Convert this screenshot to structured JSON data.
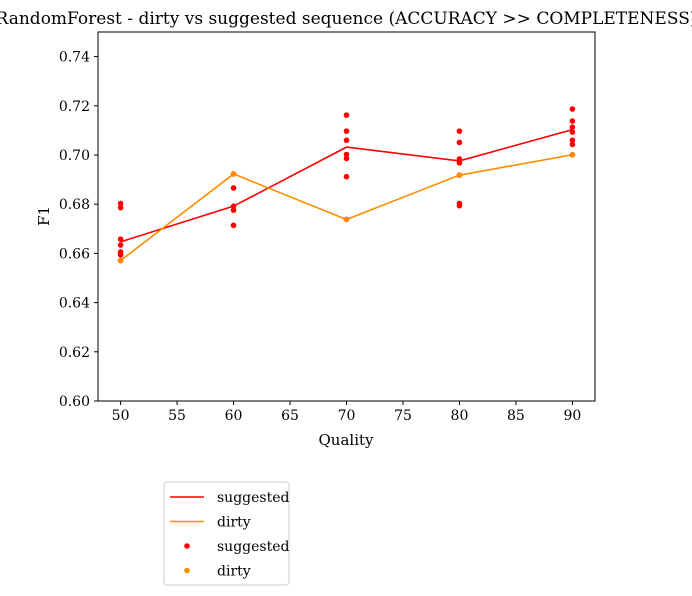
{
  "chart_data": {
    "type": "line",
    "title": "RandomForest - dirty vs suggested sequence (ACCURACY >> COMPLETENESS)",
    "xlabel": "Quality",
    "ylabel": "F1",
    "xlim": [
      48,
      92
    ],
    "ylim": [
      0.6,
      0.75
    ],
    "x_ticks": [
      50,
      55,
      60,
      65,
      70,
      75,
      80,
      85,
      90
    ],
    "y_ticks": [
      0.6,
      0.62,
      0.64,
      0.66,
      0.68,
      0.7,
      0.72,
      0.74
    ],
    "grid": false,
    "legend_placement": "below-left",
    "x": [
      50,
      60,
      70,
      80,
      90
    ],
    "series": [
      {
        "name": "suggested",
        "kind": "line",
        "color": "#ff0000",
        "values": [
          0.6647,
          0.6792,
          0.7032,
          0.6976,
          0.7103
        ]
      },
      {
        "name": "dirty",
        "kind": "line",
        "color": "#ff8c00",
        "values": [
          0.6571,
          0.6923,
          0.6738,
          0.6918,
          0.7001
        ]
      },
      {
        "name": "suggested",
        "kind": "scatter",
        "color": "#ff0000",
        "points": [
          [
            50,
            0.6803
          ],
          [
            50,
            0.6786
          ],
          [
            50,
            0.6658
          ],
          [
            50,
            0.6634
          ],
          [
            50,
            0.6606
          ],
          [
            50,
            0.6594
          ],
          [
            50,
            0.6571
          ],
          [
            60,
            0.6923
          ],
          [
            60,
            0.6866
          ],
          [
            60,
            0.6792
          ],
          [
            60,
            0.6776
          ],
          [
            60,
            0.6714
          ],
          [
            70,
            0.7162
          ],
          [
            70,
            0.7097
          ],
          [
            70,
            0.706
          ],
          [
            70,
            0.7002
          ],
          [
            70,
            0.6986
          ],
          [
            70,
            0.6912
          ],
          [
            70,
            0.6738
          ],
          [
            80,
            0.7097
          ],
          [
            80,
            0.7051
          ],
          [
            80,
            0.6984
          ],
          [
            80,
            0.6968
          ],
          [
            80,
            0.6918
          ],
          [
            80,
            0.6803
          ],
          [
            80,
            0.6794
          ],
          [
            90,
            0.7187
          ],
          [
            90,
            0.7138
          ],
          [
            90,
            0.7113
          ],
          [
            90,
            0.7093
          ],
          [
            90,
            0.706
          ],
          [
            90,
            0.7043
          ],
          [
            90,
            0.7001
          ]
        ]
      },
      {
        "name": "dirty",
        "kind": "scatter",
        "color": "#ff8c00",
        "points": [
          [
            50,
            0.6571
          ],
          [
            60,
            0.6923
          ],
          [
            70,
            0.6738
          ],
          [
            80,
            0.6918
          ],
          [
            90,
            0.7001
          ]
        ]
      }
    ],
    "legend": {
      "entries": [
        {
          "label": "suggested",
          "marker": "line",
          "color": "#ff0000"
        },
        {
          "label": "dirty",
          "marker": "line",
          "color": "#ff8c00"
        },
        {
          "label": "suggested",
          "marker": "dot",
          "color": "#ff0000"
        },
        {
          "label": "dirty",
          "marker": "dot",
          "color": "#ff8c00"
        }
      ]
    }
  }
}
